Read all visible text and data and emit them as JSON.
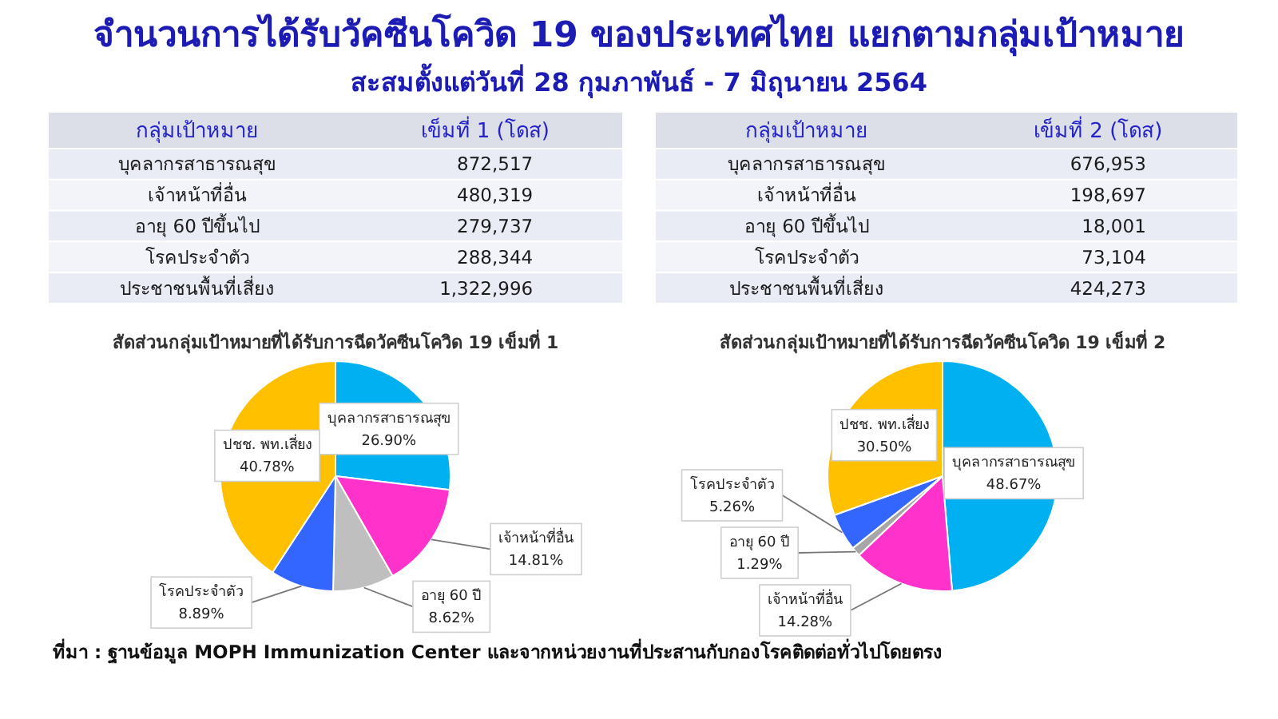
{
  "chart_data": [
    {
      "type": "other",
      "title": "จำนวนการได้รับวัคซีนโควิด 19 ของประเทศไทย แยกตามกลุ่มเป้าหมาย",
      "subtitle": "สะสมตั้งแต่วันที่ 28 กุมภาพันธ์ - 7 มิถุนายน 2564",
      "annotations": [
        "ที่มา : ฐานข้อมูล MOPH Immunization Center และจากหน่วยงานที่ประสานกับกองโรคติดต่อทั่วไปโดยตรง"
      ]
    },
    {
      "type": "other",
      "xlabel": "กลุ่มเป้าหมาย",
      "categories": [
        "บุคลากรสาธารณสุข",
        "เจ้าหน้าที่อื่น",
        "อายุ 60 ปีขึ้นไป",
        "โรคประจำตัว",
        "ประชาชนพื้นที่เสี่ยง"
      ],
      "series": [
        {
          "name": "เข็มที่ 1 (โดส)",
          "values": [
            872517,
            480319,
            279737,
            288344,
            1322996
          ],
          "value_labels": [
            "872,517",
            "480,319",
            "279,737",
            "288,344",
            "1,322,996"
          ]
        }
      ]
    },
    {
      "type": "other",
      "xlabel": "กลุ่มเป้าหมาย",
      "categories": [
        "บุคลากรสาธารณสุข",
        "เจ้าหน้าที่อื่น",
        "อายุ 60 ปีขึ้นไป",
        "โรคประจำตัว",
        "ประชาชนพื้นที่เสี่ยง"
      ],
      "series": [
        {
          "name": "เข็มที่ 2 (โดส)",
          "values": [
            676953,
            198697,
            18001,
            73104,
            424273
          ],
          "value_labels": [
            "676,953",
            "198,697",
            "18,001",
            "73,104",
            "424,273"
          ]
        }
      ]
    },
    {
      "type": "pie",
      "title": "สัดส่วนกลุ่มเป้าหมายที่ได้รับการฉีดวัคซีนโควิด 19 เข็มที่ 1",
      "categories": [
        "บุคลากรสาธารณสุข",
        "เจ้าหน้าที่อื่น",
        "อายุ 60 ปี",
        "โรคประจำตัว",
        "ปชช. พท.เสี่ยง"
      ],
      "values": [
        26.9,
        14.81,
        8.62,
        8.89,
        40.78
      ],
      "colors": [
        "#00b0f0",
        "#ff33cc",
        "#bfbfbf",
        "#3366ff",
        "#ffc000"
      ],
      "value_labels": [
        "26.90%",
        "14.81%",
        "8.62%",
        "8.89%",
        "40.78%"
      ]
    },
    {
      "type": "pie",
      "title": "สัดส่วนกลุ่มเป้าหมายที่ได้รับการฉีดวัคซีนโควิด 19 เข็มที่ 2",
      "categories": [
        "บุคลากรสาธารณสุข",
        "เจ้าหน้าที่อื่น",
        "อายุ 60 ปี",
        "โรคประจำตัว",
        "ปชช. พท.เสี่ยง"
      ],
      "values": [
        48.67,
        14.28,
        1.29,
        5.26,
        30.5
      ],
      "colors": [
        "#00b0f0",
        "#ff33cc",
        "#a6a6a6",
        "#3366ff",
        "#ffc000"
      ],
      "value_labels": [
        "48.67%",
        "14.28%",
        "1.29%",
        "5.26%",
        "30.50%"
      ]
    }
  ]
}
